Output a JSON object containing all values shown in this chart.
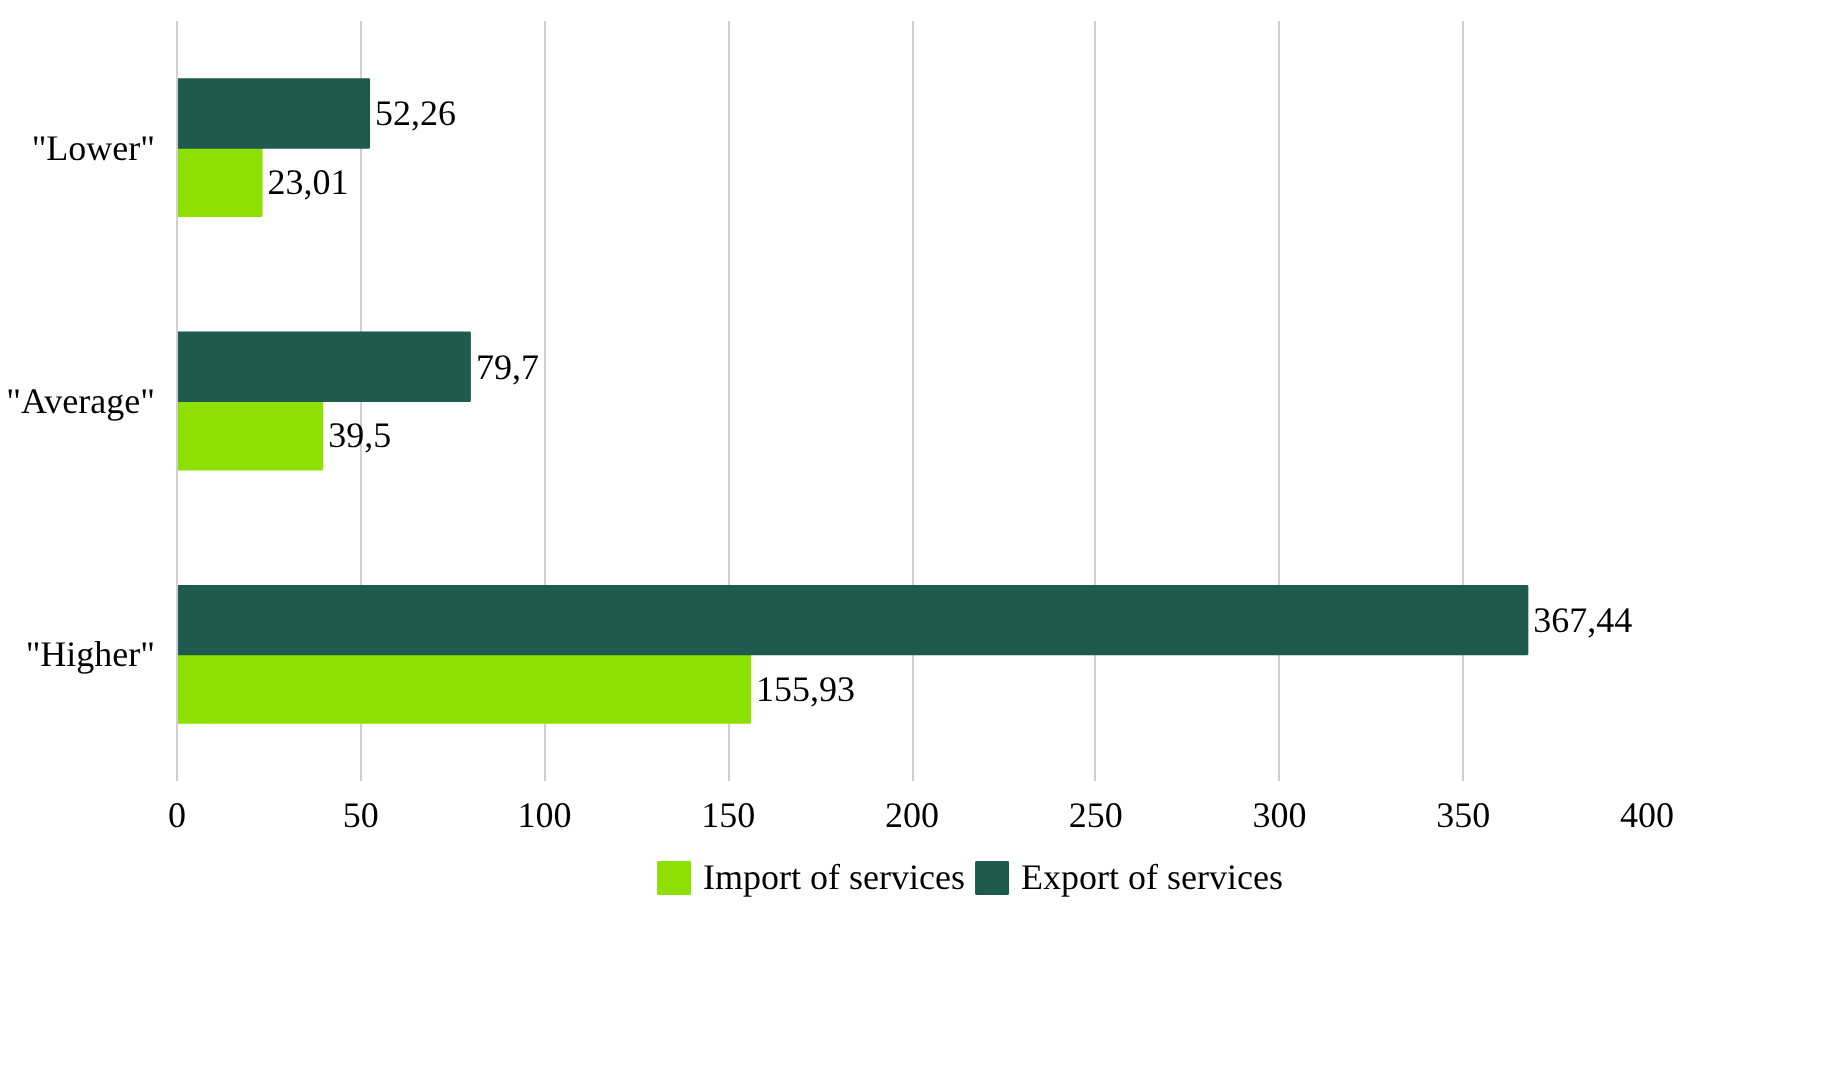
{
  "chart_data": {
    "type": "bar",
    "orientation": "horizontal",
    "categories": [
      "\"Lower\"",
      "\"Average\"",
      "\"Higher\""
    ],
    "series": [
      {
        "name": "Import of services",
        "color": "#8ee000",
        "values": [
          23.01,
          39.5,
          155.93
        ]
      },
      {
        "name": "Export of services",
        "color": "#1f5a4e",
        "values": [
          52.26,
          79.7,
          367.44
        ]
      }
    ],
    "value_labels": [
      [
        "23,01",
        "39,5",
        "155,93"
      ],
      [
        "52,26",
        "79,7",
        "367,44"
      ]
    ],
    "xlim": [
      0,
      400
    ],
    "xticks": [
      0,
      50,
      100,
      150,
      200,
      250,
      300,
      350,
      400
    ],
    "grid": "x",
    "legend": "bottom"
  }
}
